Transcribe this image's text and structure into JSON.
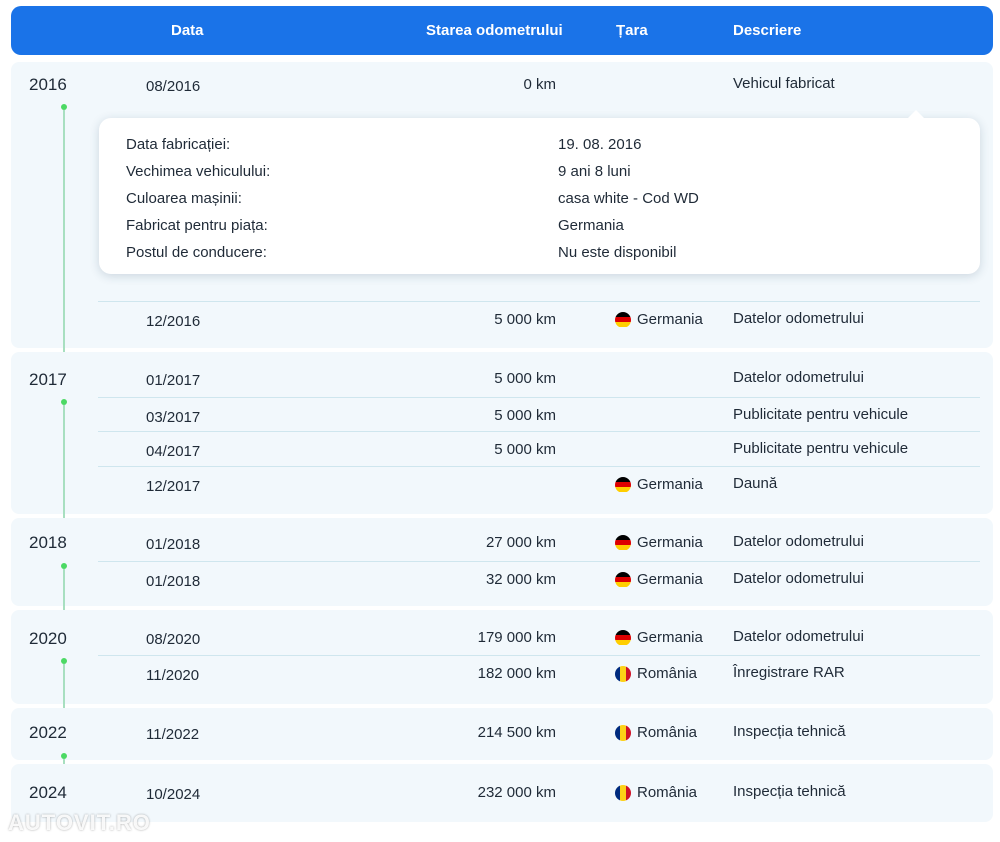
{
  "header": {
    "date_label": "Data",
    "odometer_label": "Starea odometrului",
    "country_label": "Țara",
    "description_label": "Descriere"
  },
  "colors": {
    "header_bg": "#1a73e8",
    "group_bg": "#f2f8fc",
    "timeline_dot": "#4cd964",
    "timeline_line": "#a8dfc0"
  },
  "years": [
    "2016",
    "2017",
    "2018",
    "2020",
    "2022",
    "2024"
  ],
  "rows": [
    {
      "date": "08/2016",
      "odometer": "0 km",
      "country": "",
      "flag": "",
      "description": "Vehicul fabricat"
    },
    {
      "date": "12/2016",
      "odometer": "5 000 km",
      "country": "Germania",
      "flag": "germany-flag-icon",
      "description": "Datelor odometrului"
    },
    {
      "date": "01/2017",
      "odometer": "5 000 km",
      "country": "",
      "flag": "",
      "description": "Datelor odometrului"
    },
    {
      "date": "03/2017",
      "odometer": "5 000 km",
      "country": "",
      "flag": "",
      "description": "Publicitate pentru vehicule"
    },
    {
      "date": "04/2017",
      "odometer": "5 000 km",
      "country": "",
      "flag": "",
      "description": "Publicitate pentru vehicule"
    },
    {
      "date": "12/2017",
      "odometer": "",
      "country": "Germania",
      "flag": "germany-flag-icon",
      "description": "Daună"
    },
    {
      "date": "01/2018",
      "odometer": "27 000 km",
      "country": "Germania",
      "flag": "germany-flag-icon",
      "description": "Datelor odometrului"
    },
    {
      "date": "01/2018",
      "odometer": "32 000 km",
      "country": "Germania",
      "flag": "germany-flag-icon",
      "description": "Datelor odometrului"
    },
    {
      "date": "08/2020",
      "odometer": "179 000 km",
      "country": "Germania",
      "flag": "germany-flag-icon",
      "description": "Datelor odometrului"
    },
    {
      "date": "11/2020",
      "odometer": "182 000 km",
      "country": "România",
      "flag": "romania-flag-icon",
      "description": "Înregistrare RAR"
    },
    {
      "date": "11/2022",
      "odometer": "214 500 km",
      "country": "România",
      "flag": "romania-flag-icon",
      "description": "Inspecția tehnică"
    },
    {
      "date": "10/2024",
      "odometer": "232 000 km",
      "country": "România",
      "flag": "romania-flag-icon",
      "description": "Inspecția tehnică"
    }
  ],
  "details": [
    {
      "label": "Data fabricației:",
      "value": "19. 08. 2016"
    },
    {
      "label": "Vechimea vehiculului:",
      "value": "9 ani 8 luni"
    },
    {
      "label": "Culoarea mașinii:",
      "value": "casa white - Cod WD"
    },
    {
      "label": "Fabricat pentru piața:",
      "value": "Germania"
    },
    {
      "label": "Postul de conducere:",
      "value": "Nu este disponibil"
    }
  ],
  "watermark": "AUTOVIT.RO"
}
